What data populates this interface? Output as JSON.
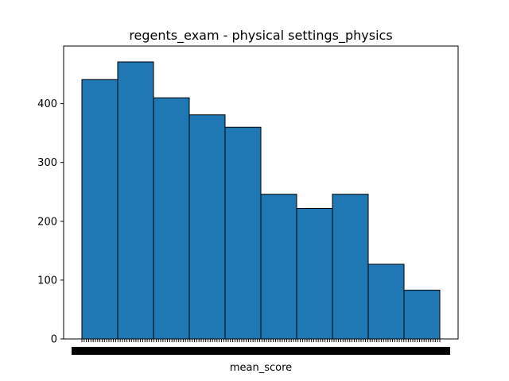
{
  "chart_data": {
    "type": "bar",
    "title": "regents_exam - physical settings_physics",
    "xlabel": "mean_score",
    "ylabel": "",
    "bar_color": "#1f77b4",
    "edge_color": "#000000",
    "ylim": [
      0,
      498
    ],
    "yticks": [
      0,
      100,
      200,
      300,
      400
    ],
    "values": [
      441,
      471,
      410,
      381,
      360,
      246,
      222,
      246,
      127,
      83
    ],
    "grid": false,
    "legend": "none"
  }
}
